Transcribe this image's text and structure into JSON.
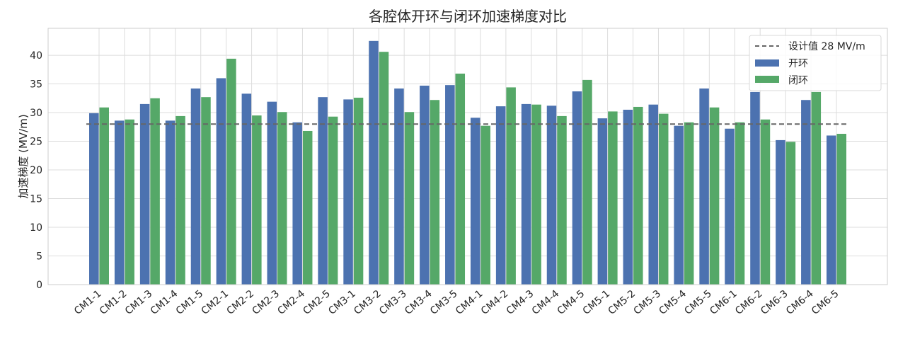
{
  "chart_data": {
    "type": "bar",
    "title": "各腔体开环与闭环加速梯度对比",
    "xlabel": "",
    "ylabel": "加速梯度 (MV/m)",
    "ylim": [
      0,
      44.7
    ],
    "yticks": [
      0,
      5,
      10,
      15,
      20,
      25,
      30,
      35,
      40
    ],
    "grid": true,
    "legend_position": "top-right",
    "categories": [
      "CM1-1",
      "CM1-2",
      "CM1-3",
      "CM1-4",
      "CM1-5",
      "CM2-1",
      "CM2-2",
      "CM2-3",
      "CM2-4",
      "CM2-5",
      "CM3-1",
      "CM3-2",
      "CM3-3",
      "CM3-4",
      "CM3-5",
      "CM4-1",
      "CM4-2",
      "CM4-3",
      "CM4-4",
      "CM4-5",
      "CM5-1",
      "CM5-2",
      "CM5-3",
      "CM5-4",
      "CM5-5",
      "CM6-1",
      "CM6-2",
      "CM6-3",
      "CM6-4",
      "CM6-5"
    ],
    "series": [
      {
        "name": "开环",
        "color": "#4c72b0",
        "values": [
          29.9,
          28.6,
          31.5,
          28.6,
          34.2,
          36.0,
          33.3,
          31.9,
          28.3,
          32.7,
          32.3,
          42.5,
          34.2,
          34.7,
          34.8,
          29.1,
          31.1,
          31.5,
          31.2,
          33.7,
          29.0,
          30.5,
          31.4,
          27.7,
          34.2,
          27.2,
          33.6,
          25.2,
          32.2,
          26.0
        ]
      },
      {
        "name": "闭环",
        "color": "#55a868",
        "values": [
          30.9,
          28.8,
          32.5,
          29.4,
          32.7,
          39.4,
          29.5,
          30.1,
          26.8,
          29.3,
          32.6,
          40.6,
          30.1,
          32.2,
          36.8,
          27.7,
          34.4,
          31.4,
          29.4,
          35.7,
          30.2,
          31.0,
          29.8,
          28.3,
          30.9,
          28.3,
          28.8,
          24.9,
          33.6,
          26.3
        ]
      }
    ],
    "reference_line": {
      "name": "设计值 28 MV/m",
      "value": 28,
      "color": "#666666",
      "style": "dashed"
    }
  }
}
